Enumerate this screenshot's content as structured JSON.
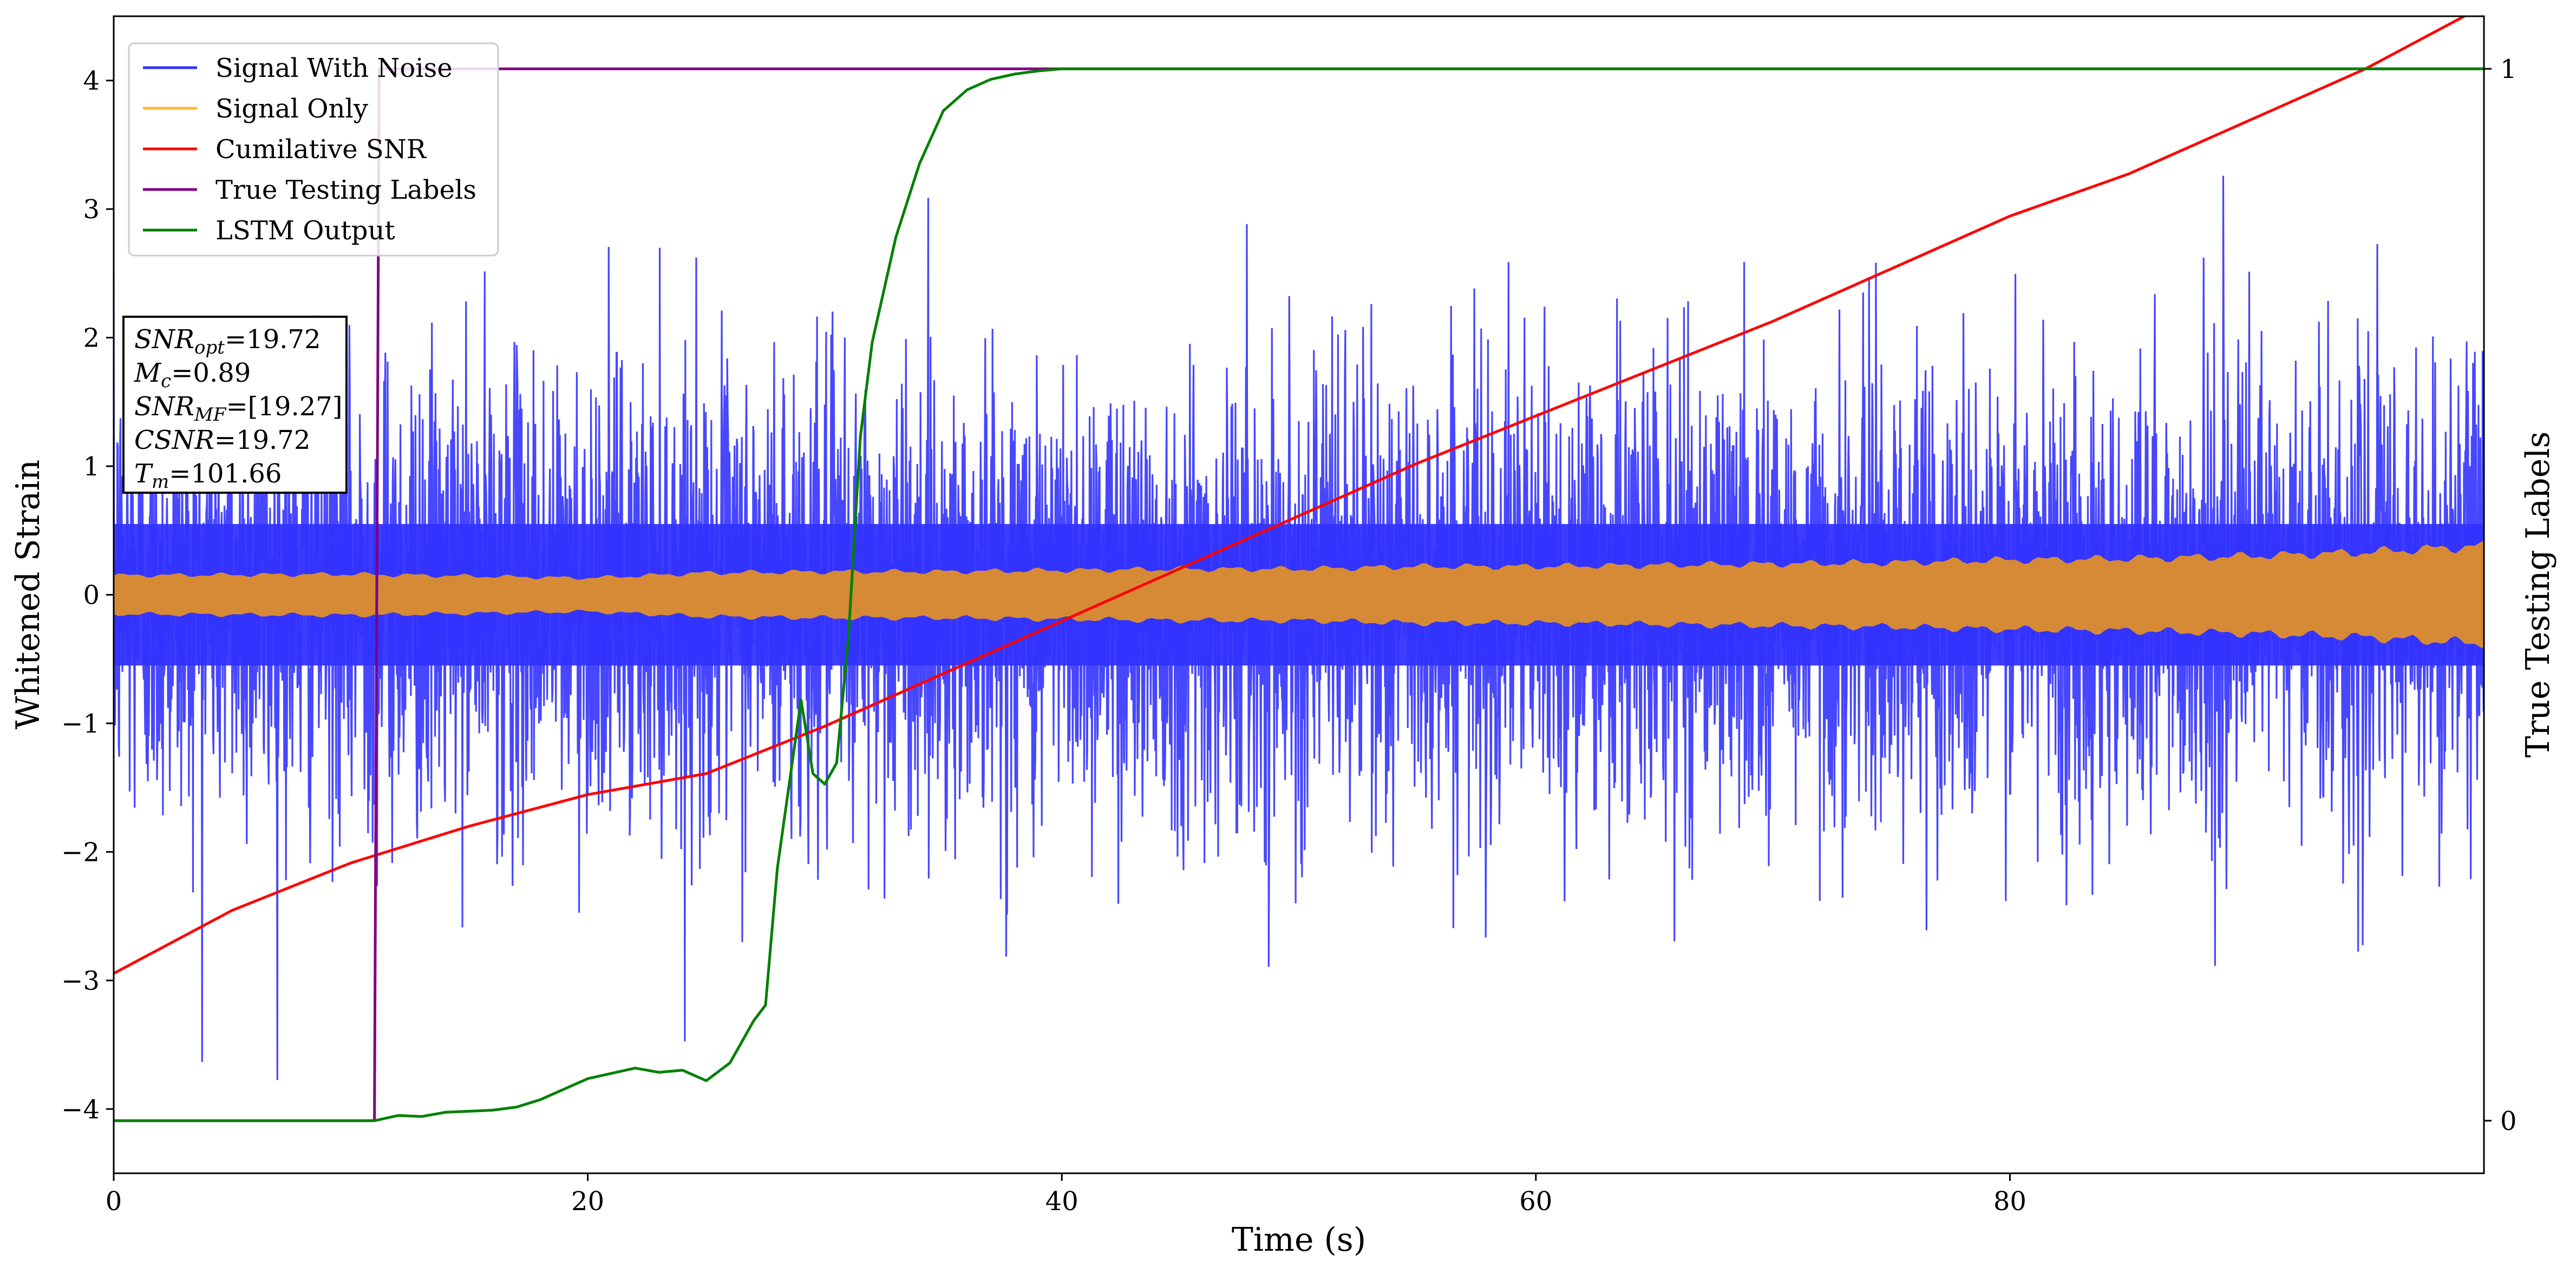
{
  "chart_data": {
    "type": "line",
    "xlabel": "Time (s)",
    "ylabel": "Whitened Strain",
    "ylabel_right": "True Testing Labels",
    "xlim": [
      0,
      100
    ],
    "ylim": [
      -4.5,
      4.5
    ],
    "ylim_right": [
      -0.05,
      1.05
    ],
    "x_ticks": [
      0,
      20,
      40,
      60,
      80
    ],
    "x_tick_labels": [
      "0",
      "20",
      "40",
      "60",
      "80"
    ],
    "y_ticks": [
      -4,
      -3,
      -2,
      -1,
      0,
      1,
      2,
      3,
      4
    ],
    "y_tick_labels": [
      "−4",
      "−3",
      "−2",
      "−1",
      "0",
      "1",
      "2",
      "3",
      "4"
    ],
    "y_right_ticks": [
      0,
      1
    ],
    "y_right_tick_labels": [
      "0",
      "1"
    ],
    "legend_position": "top-left",
    "grid": false,
    "series": [
      {
        "name": "Signal With Noise",
        "color": "#3333ff",
        "axis": "left",
        "style": "noise",
        "noise_band": [
          -0.55,
          0.55
        ],
        "noise_range": [
          -4.1,
          4.0
        ]
      },
      {
        "name": "Signal Only",
        "color": "#ffb732",
        "display_color": "#d68a36",
        "axis": "left",
        "style": "envelope",
        "x": [
          0,
          10,
          20,
          25,
          30,
          35,
          40,
          45,
          50,
          55,
          60,
          65,
          70,
          75,
          80,
          85,
          90,
          95,
          100
        ],
        "amplitude": [
          0.15,
          0.16,
          0.13,
          0.17,
          0.18,
          0.18,
          0.19,
          0.2,
          0.2,
          0.22,
          0.22,
          0.23,
          0.24,
          0.25,
          0.27,
          0.28,
          0.3,
          0.33,
          0.38
        ]
      },
      {
        "name": "Cumilative SNR",
        "color": "#ff0000",
        "axis": "right",
        "x": [
          0,
          5,
          10,
          15,
          20,
          25,
          30,
          35,
          40,
          45,
          50,
          55,
          60,
          65,
          70,
          75,
          80,
          85,
          90,
          95,
          100
        ],
        "y": [
          0.14,
          0.2,
          0.245,
          0.28,
          0.31,
          0.33,
          0.375,
          0.425,
          0.475,
          0.525,
          0.575,
          0.625,
          0.67,
          0.715,
          0.76,
          0.81,
          0.86,
          0.9,
          0.95,
          1.0,
          1.06
        ]
      },
      {
        "name": "True Testing Labels",
        "color": "#800080",
        "axis": "right",
        "x": [
          0,
          11.0,
          11.2,
          100
        ],
        "y": [
          0,
          0,
          1,
          1
        ]
      },
      {
        "name": "LSTM Output",
        "color": "#008000",
        "axis": "right",
        "x": [
          0,
          11,
          12,
          13,
          14,
          15,
          16,
          17,
          18,
          19,
          20,
          21,
          22,
          23,
          24,
          25,
          26,
          27,
          27.5,
          28,
          28.5,
          29,
          29.5,
          30,
          30.5,
          31,
          31.5,
          32,
          33,
          34,
          35,
          36,
          37,
          38,
          39,
          40,
          42,
          44,
          46,
          100
        ],
        "y": [
          0,
          0,
          0.005,
          0.004,
          0.008,
          0.009,
          0.01,
          0.013,
          0.02,
          0.03,
          0.04,
          0.045,
          0.05,
          0.046,
          0.048,
          0.038,
          0.055,
          0.095,
          0.11,
          0.24,
          0.32,
          0.4,
          0.33,
          0.32,
          0.34,
          0.46,
          0.65,
          0.74,
          0.84,
          0.91,
          0.96,
          0.98,
          0.99,
          0.995,
          0.998,
          1,
          1,
          1,
          1,
          1
        ]
      }
    ],
    "annotation": [
      {
        "sym": "SNR",
        "sub": "opt",
        "value": "=19.72"
      },
      {
        "sym": "M",
        "sub": "c",
        "value": "=0.89"
      },
      {
        "sym": "SNR",
        "sub": "MF",
        "value": "=[19.27]"
      },
      {
        "sym": "CSNR",
        "sub": "",
        "value": "=19.72"
      },
      {
        "sym": "T",
        "sub": "m",
        "value": "=101.66"
      }
    ]
  }
}
